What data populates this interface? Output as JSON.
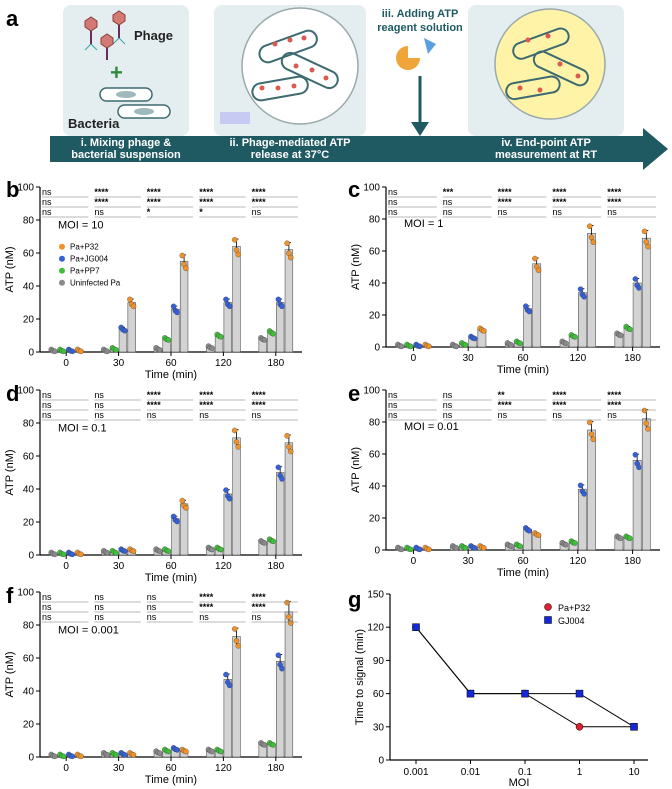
{
  "colors": {
    "p32": "#f0922b",
    "jg004": "#3560d6",
    "pp7": "#3fbf3a",
    "uninfected": "#8a8a8a",
    "bar": "#d3d3d3",
    "arrow": "#1f5a63",
    "box": "#e4eef0",
    "g_p32": "#e02030",
    "g_gj004": "#1428d8"
  },
  "panel_a": {
    "label": "a",
    "phage": "Phage",
    "plus": "+",
    "bacteria": "Bacteria",
    "adding_line1": "iii. Adding ATP",
    "adding_line2": "reagent solution",
    "steps": [
      {
        "line1": "i. Mixing phage &",
        "line2": "bacterial suspension"
      },
      {
        "line1": "ii. Phage-mediated ATP",
        "line2": "release at 37°C"
      },
      {
        "line1": "iv. End-point ATP",
        "line2": "measurement at RT"
      }
    ]
  },
  "legend": [
    "Pa+P32",
    "Pa+JG004",
    "Pa+PP7",
    "Uninfected Pa"
  ],
  "chart_data": [
    {
      "type": "bar",
      "panel": "b",
      "moi": "MOI = 10",
      "title": "",
      "xlabel": "Time (min)",
      "ylabel": "ATP (nM)",
      "categories": [
        "0",
        "30",
        "60",
        "120",
        "180"
      ],
      "ylim": [
        0,
        100
      ],
      "yticks": [
        "0",
        "20",
        "40",
        "60",
        "80",
        "100"
      ],
      "series": [
        {
          "name": "Uninfected Pa",
          "values": [
            1,
            1,
            2,
            3,
            8
          ]
        },
        {
          "name": "Pa+PP7",
          "values": [
            1,
            2,
            8,
            10,
            12
          ]
        },
        {
          "name": "Pa+JG004",
          "values": [
            1,
            14,
            26,
            30,
            30
          ]
        },
        {
          "name": "Pa+P32",
          "values": [
            1,
            30,
            55,
            64,
            62
          ]
        }
      ],
      "sig": [
        [
          "ns",
          "****",
          "****",
          "****",
          "****"
        ],
        [
          "ns",
          "****",
          "****",
          "****",
          "****"
        ],
        [
          "ns",
          "ns",
          "*",
          "*",
          "ns"
        ]
      ]
    },
    {
      "type": "bar",
      "panel": "c",
      "moi": "MOI = 1",
      "title": "",
      "xlabel": "Time (min)",
      "ylabel": "ATP (nM)",
      "categories": [
        "0",
        "30",
        "60",
        "120",
        "180"
      ],
      "ylim": [
        0,
        100
      ],
      "yticks": [
        "0",
        "20",
        "40",
        "60",
        "80",
        "100"
      ],
      "series": [
        {
          "name": "Uninfected Pa",
          "values": [
            1,
            1,
            2,
            3,
            8
          ]
        },
        {
          "name": "Pa+PP7",
          "values": [
            1,
            2,
            3,
            7,
            12
          ]
        },
        {
          "name": "Pa+JG004",
          "values": [
            1,
            6,
            24,
            34,
            40
          ]
        },
        {
          "name": "Pa+P32",
          "values": [
            1,
            11,
            52,
            71,
            68
          ]
        }
      ],
      "sig": [
        [
          "ns",
          "***",
          "****",
          "****",
          "****"
        ],
        [
          "ns",
          "ns",
          "****",
          "****",
          "****"
        ],
        [
          "ns",
          "ns",
          "ns",
          "ns",
          "ns"
        ]
      ]
    },
    {
      "type": "bar",
      "panel": "d",
      "moi": "MOI = 0.1",
      "title": "",
      "xlabel": "Time (min)",
      "ylabel": "ATP (nM)",
      "categories": [
        "0",
        "30",
        "60",
        "120",
        "180"
      ],
      "ylim": [
        0,
        100
      ],
      "yticks": [
        "0",
        "20",
        "40",
        "60",
        "80",
        "100"
      ],
      "series": [
        {
          "name": "Uninfected Pa",
          "values": [
            1,
            2,
            3,
            4,
            8
          ]
        },
        {
          "name": "Pa+PP7",
          "values": [
            1,
            2,
            3,
            4,
            9
          ]
        },
        {
          "name": "Pa+JG004",
          "values": [
            1,
            3,
            22,
            37,
            50
          ]
        },
        {
          "name": "Pa+P32",
          "values": [
            1,
            3,
            31,
            71,
            68
          ]
        }
      ],
      "sig": [
        [
          "ns",
          "ns",
          "****",
          "****",
          "****"
        ],
        [
          "ns",
          "ns",
          "****",
          "****",
          "****"
        ],
        [
          "ns",
          "ns",
          "ns",
          "ns",
          "ns"
        ]
      ]
    },
    {
      "type": "bar",
      "panel": "e",
      "moi": "MOI = 0.01",
      "title": "",
      "xlabel": "Time (min)",
      "ylabel": "ATP (nM)",
      "categories": [
        "0",
        "30",
        "60",
        "120",
        "180"
      ],
      "ylim": [
        0,
        100
      ],
      "yticks": [
        "0",
        "20",
        "40",
        "60",
        "80",
        "100"
      ],
      "series": [
        {
          "name": "Uninfected Pa",
          "values": [
            1,
            2,
            3,
            4,
            8
          ]
        },
        {
          "name": "Pa+PP7",
          "values": [
            1,
            2,
            3,
            5,
            8
          ]
        },
        {
          "name": "Pa+JG004",
          "values": [
            1,
            2,
            13,
            38,
            56
          ]
        },
        {
          "name": "Pa+P32",
          "values": [
            1,
            2,
            10,
            75,
            82
          ]
        }
      ],
      "sig": [
        [
          "ns",
          "ns",
          "**",
          "****",
          "****"
        ],
        [
          "ns",
          "ns",
          "****",
          "****",
          "****"
        ],
        [
          "ns",
          "ns",
          "ns",
          "ns",
          "ns"
        ]
      ]
    },
    {
      "type": "bar",
      "panel": "f",
      "moi": "MOI = 0.001",
      "title": "",
      "xlabel": "Time (min)",
      "ylabel": "ATP (nM)",
      "categories": [
        "0",
        "30",
        "60",
        "120",
        "180"
      ],
      "ylim": [
        0,
        100
      ],
      "yticks": [
        "0",
        "20",
        "40",
        "60",
        "80",
        "100"
      ],
      "series": [
        {
          "name": "Uninfected Pa",
          "values": [
            1,
            2,
            3,
            4,
            8
          ]
        },
        {
          "name": "Pa+PP7",
          "values": [
            1,
            2,
            4,
            4,
            8
          ]
        },
        {
          "name": "Pa+JG004",
          "values": [
            1,
            2,
            5,
            47,
            58
          ]
        },
        {
          "name": "Pa+P32",
          "values": [
            1,
            2,
            4,
            73,
            88
          ]
        }
      ],
      "sig": [
        [
          "ns",
          "ns",
          "ns",
          "****",
          "****"
        ],
        [
          "ns",
          "ns",
          "ns",
          "****",
          "****"
        ],
        [
          "ns",
          "ns",
          "ns",
          "ns",
          "ns"
        ]
      ]
    },
    {
      "type": "line",
      "panel": "g",
      "title": "",
      "xlabel": "MOI",
      "ylabel": "Time to signal (min)",
      "x": [
        "0.001",
        "0.01",
        "0.1",
        "1",
        "10"
      ],
      "ylim": [
        0,
        150
      ],
      "yticks": [
        "0",
        "30",
        "60",
        "90",
        "120",
        "150"
      ],
      "series": [
        {
          "name": "Pa+P32",
          "values": [
            120,
            60,
            60,
            30,
            30
          ]
        },
        {
          "name": "GJ004",
          "values": [
            120,
            60,
            60,
            60,
            30
          ]
        }
      ]
    }
  ]
}
